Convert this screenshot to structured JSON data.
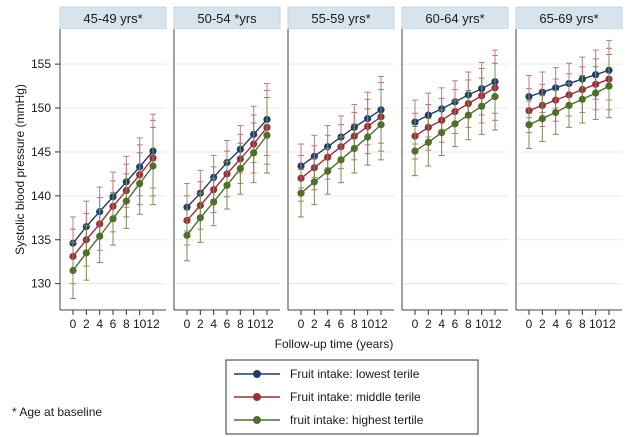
{
  "chart_data": {
    "type": "line",
    "ylabel": "Systolic blood pressure (mmHg)",
    "xlabel": "Follow-up time (years)",
    "ylim": [
      127,
      159
    ],
    "yticks": [
      130,
      135,
      140,
      145,
      150,
      155
    ],
    "x": [
      0,
      2,
      4,
      6,
      8,
      10,
      12
    ],
    "footnote": "* Age at baseline",
    "grid": true,
    "legend_position": "bottom-center",
    "panels": [
      {
        "label": "45-49 yrs*",
        "series": [
          {
            "values": [
              134.6,
              136.5,
              138.2,
              139.9,
              141.6,
              143.3,
              145.1
            ],
            "errors": [
              3.0,
              2.9,
              2.8,
              2.8,
              2.9,
              3.3,
              4.2
            ]
          },
          {
            "values": [
              133.1,
              135.0,
              136.8,
              138.8,
              140.6,
              142.4,
              144.3
            ],
            "errors": [
              3.1,
              3.0,
              3.0,
              2.9,
              3.0,
              3.4,
              4.3
            ]
          },
          {
            "values": [
              131.5,
              133.5,
              135.4,
              137.4,
              139.4,
              141.4,
              143.4
            ],
            "errors": [
              3.2,
              3.1,
              3.0,
              3.0,
              3.1,
              3.5,
              4.4
            ]
          }
        ]
      },
      {
        "label": "50-54 *yrs",
        "series": [
          {
            "values": [
              138.7,
              140.3,
              142.1,
              143.8,
              145.3,
              147.0,
              148.7
            ],
            "errors": [
              2.7,
              2.6,
              2.5,
              2.5,
              2.7,
              3.2,
              4.1
            ]
          },
          {
            "values": [
              137.2,
              138.9,
              140.7,
              142.5,
              144.2,
              145.9,
              147.8
            ],
            "errors": [
              2.8,
              2.7,
              2.6,
              2.6,
              2.8,
              3.3,
              4.2
            ]
          },
          {
            "values": [
              135.5,
              137.5,
              139.3,
              141.2,
              143.1,
              144.9,
              146.9
            ],
            "errors": [
              2.9,
              2.8,
              2.7,
              2.7,
              2.9,
              3.4,
              4.3
            ]
          }
        ]
      },
      {
        "label": "55-59 yrs*",
        "series": [
          {
            "values": [
              143.4,
              144.5,
              145.6,
              146.7,
              147.8,
              148.8,
              149.8
            ],
            "errors": [
              2.5,
              2.4,
              2.4,
              2.4,
              2.6,
              3.0,
              3.8
            ]
          },
          {
            "values": [
              142.0,
              143.2,
              144.4,
              145.6,
              146.8,
              147.9,
              149.0
            ],
            "errors": [
              2.6,
              2.5,
              2.5,
              2.5,
              2.7,
              3.1,
              3.9
            ]
          },
          {
            "values": [
              140.3,
              141.6,
              142.8,
              144.1,
              145.4,
              146.7,
              148.1
            ],
            "errors": [
              2.7,
              2.6,
              2.6,
              2.6,
              2.8,
              3.2,
              4.0
            ]
          }
        ]
      },
      {
        "label": "60-64 yrs*",
        "series": [
          {
            "values": [
              148.4,
              149.2,
              149.9,
              150.7,
              151.5,
              152.2,
              153.0
            ],
            "errors": [
              2.5,
              2.5,
              2.4,
              2.4,
              2.6,
              3.0,
              3.6
            ]
          },
          {
            "values": [
              146.8,
              147.8,
              148.6,
              149.6,
              150.5,
              151.4,
              152.3
            ],
            "errors": [
              2.6,
              2.6,
              2.5,
              2.5,
              2.7,
              3.1,
              3.7
            ]
          },
          {
            "values": [
              145.1,
              146.1,
              147.2,
              148.2,
              149.2,
              150.2,
              151.3
            ],
            "errors": [
              2.8,
              2.7,
              2.6,
              2.6,
              2.8,
              3.2,
              3.8
            ]
          }
        ]
      },
      {
        "label": "65-69 yrs*",
        "series": [
          {
            "values": [
              151.3,
              151.8,
              152.3,
              152.8,
              153.3,
              153.8,
              154.3
            ],
            "errors": [
              2.4,
              2.3,
              2.3,
              2.3,
              2.5,
              2.8,
              3.4
            ]
          },
          {
            "values": [
              149.7,
              150.3,
              150.9,
              151.5,
              152.1,
              152.7,
              153.3
            ],
            "errors": [
              2.5,
              2.4,
              2.4,
              2.4,
              2.6,
              2.9,
              3.5
            ]
          },
          {
            "values": [
              148.1,
              148.8,
              149.5,
              150.3,
              151.0,
              151.7,
              152.5
            ],
            "errors": [
              2.7,
              2.6,
              2.5,
              2.5,
              2.7,
              3.0,
              3.6
            ]
          }
        ]
      }
    ],
    "legend": [
      {
        "label": "Fruit intake: lowest terile",
        "color": "#1f3f68"
      },
      {
        "label": "Fruit intake: middle terile",
        "color": "#9b2f3a"
      },
      {
        "label": "fruit intake: highest tertile",
        "color": "#4f6f2a"
      }
    ],
    "colors": [
      "#1f3f68",
      "#9b2f3a",
      "#4f6f2a"
    ]
  }
}
